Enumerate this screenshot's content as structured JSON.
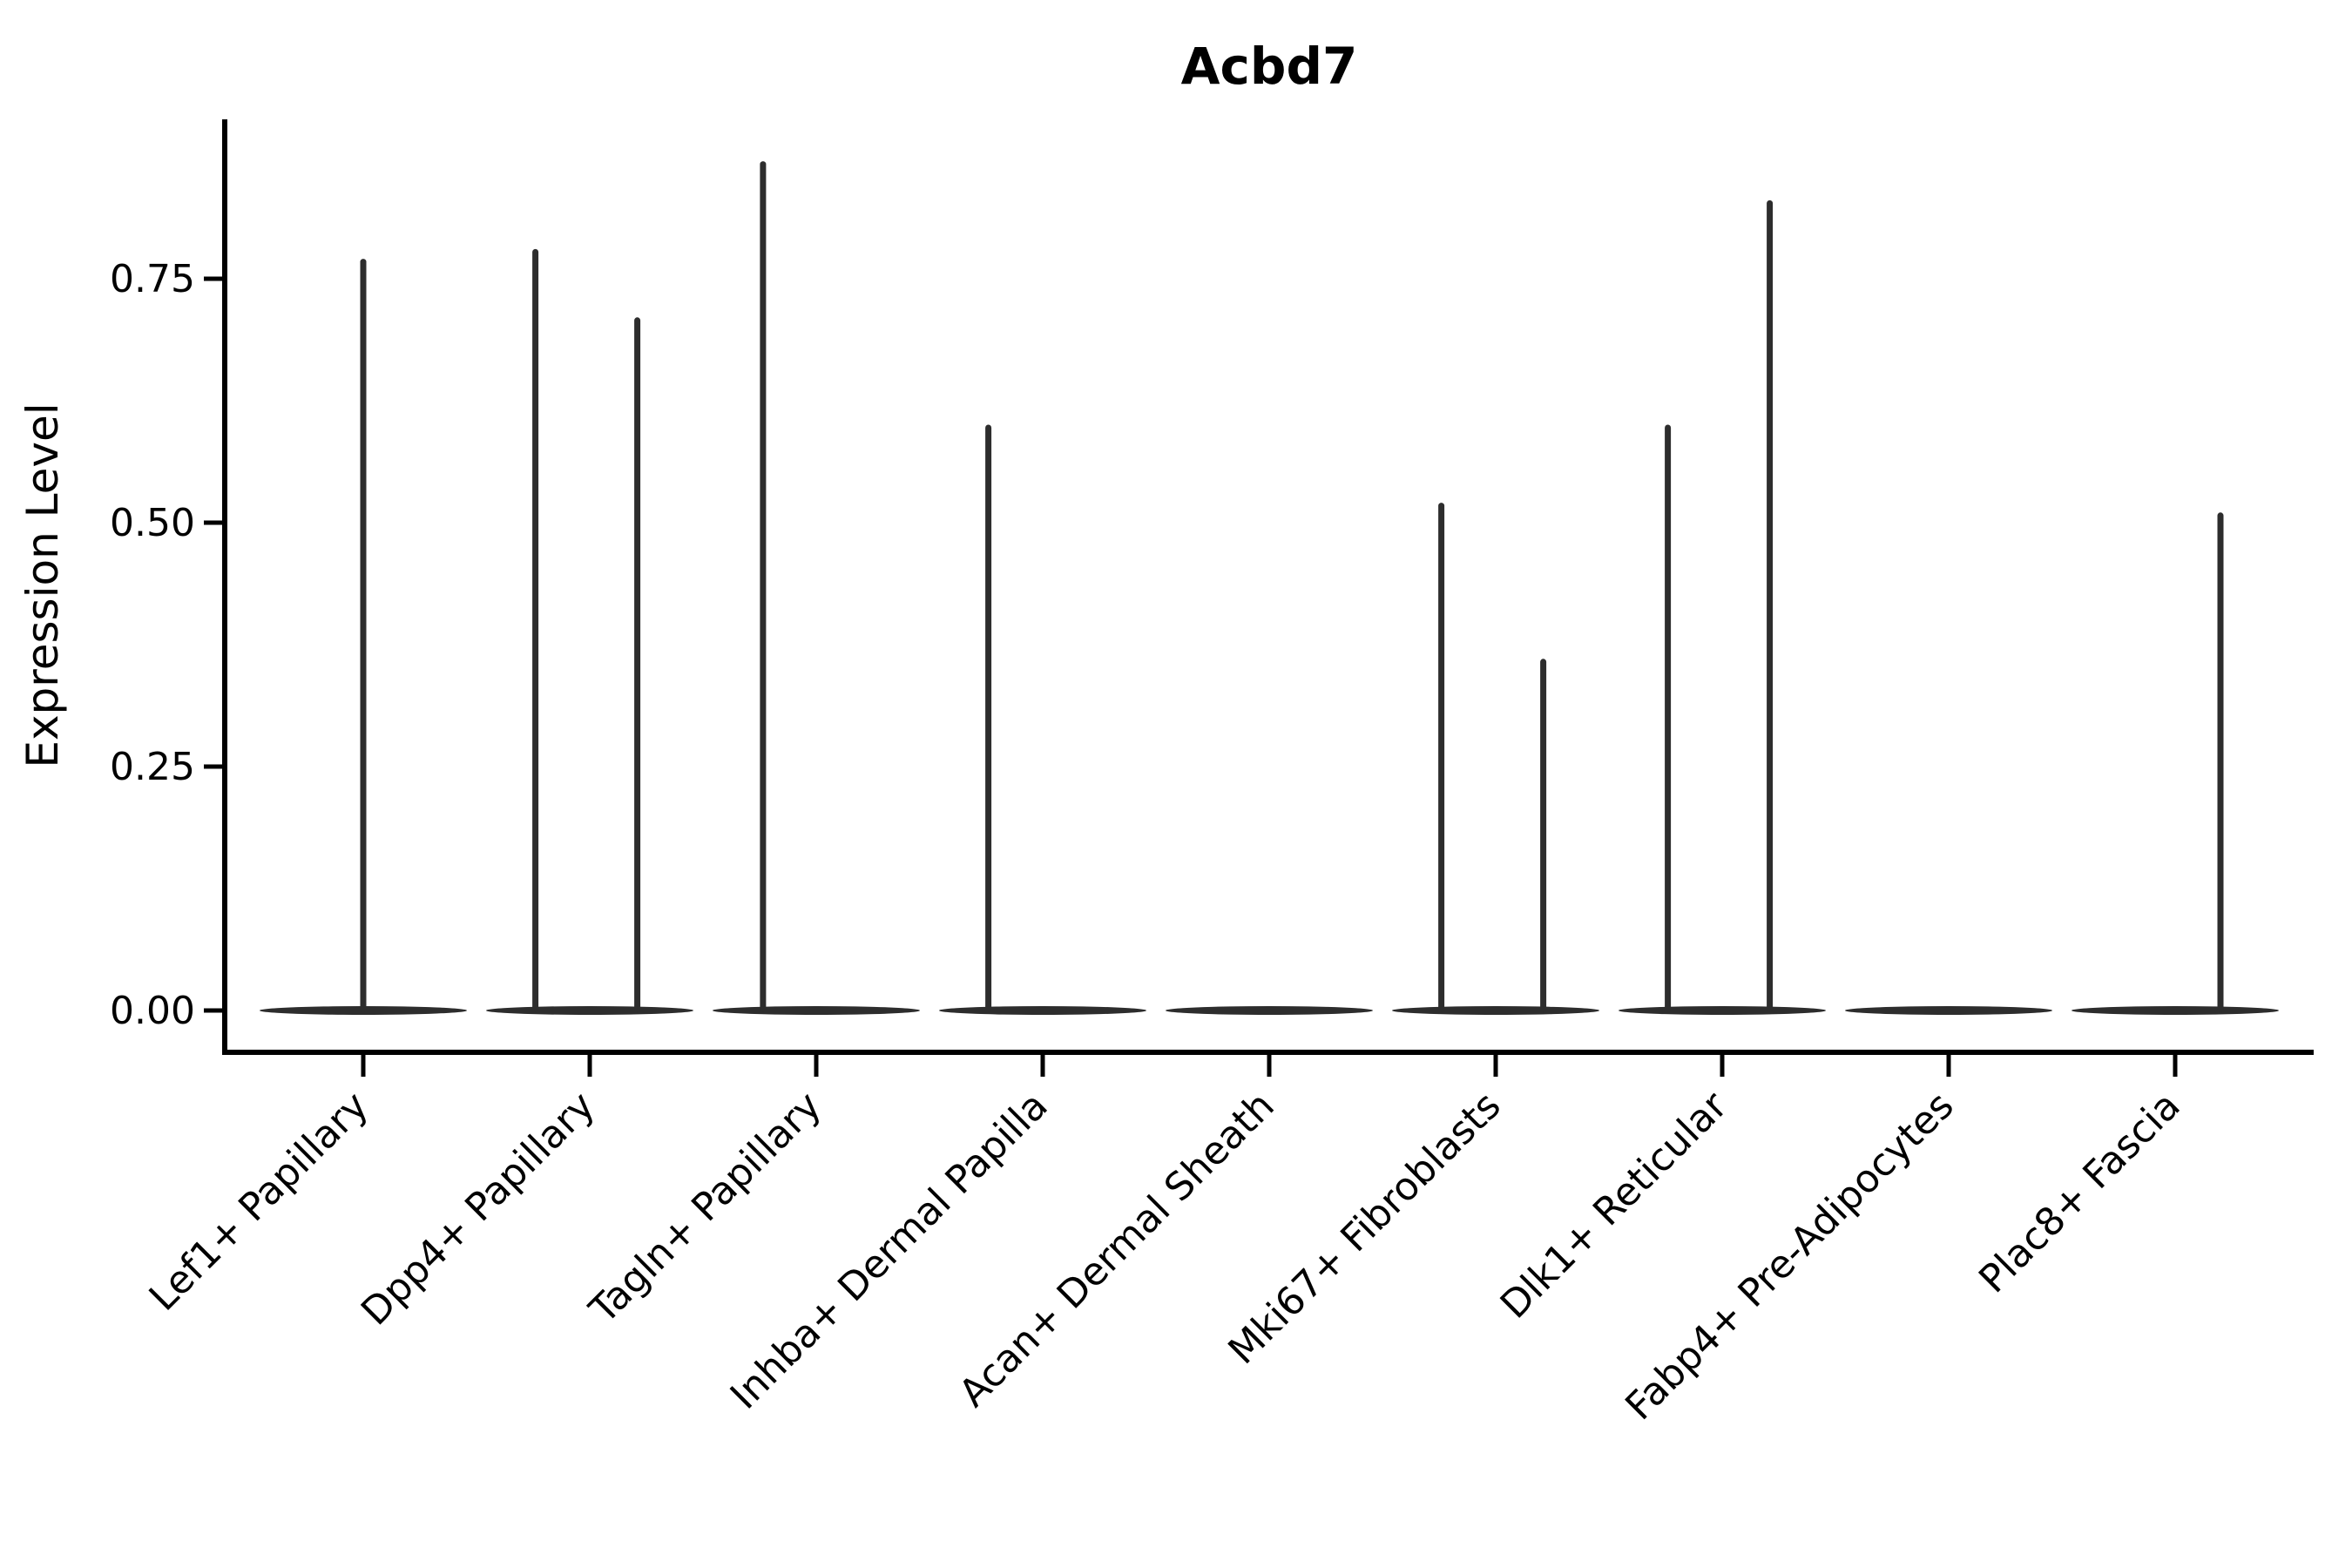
{
  "title": "Acbd7",
  "axes": {
    "ylabel": "Expression Level",
    "ytick_labels": [
      "0.00",
      "0.25",
      "0.50",
      "0.75"
    ]
  },
  "chart_data": {
    "type": "violin",
    "title": "Acbd7",
    "xlabel": "",
    "ylabel": "Expression Level",
    "yticks": [
      0.0,
      0.25,
      0.5,
      0.75
    ],
    "ylim": [
      -0.044,
      0.91
    ],
    "grid": false,
    "legend": null,
    "categories": [
      "Lef1+ Papillary",
      "Dpp4+ Papillary",
      "Tagln+ Papillary",
      "Inhba+ Dermal Papilla",
      "Acan+ Dermal Sheath",
      "Mki67+ Fibroblasts",
      "Dlk1+ Reticular",
      "Fabp4+ Pre-Adipocytes",
      "Plac8+ Fascia"
    ],
    "description": "Single-gene violin plot (Acbd7). Every cluster has a flat density base at expression 0; thin vertical density spikes reach the max-expressing cells of that cluster. Acan+ Dermal Sheath and Fabp4+ Pre-Adipocytes have no cells above 0.",
    "violins": [
      {
        "category": "Lef1+ Papillary",
        "zero_base": true,
        "spikes": [
          {
            "offset_frac": 0.0,
            "max": 0.77
          }
        ]
      },
      {
        "category": "Dpp4+ Papillary",
        "zero_base": true,
        "spikes": [
          {
            "offset_frac": -0.24,
            "max": 0.78
          },
          {
            "offset_frac": 0.21,
            "max": 0.71
          }
        ]
      },
      {
        "category": "Tagln+ Papillary",
        "zero_base": true,
        "spikes": [
          {
            "offset_frac": -0.235,
            "max": 0.87
          }
        ]
      },
      {
        "category": "Inhba+ Dermal Papilla",
        "zero_base": true,
        "spikes": [
          {
            "offset_frac": -0.24,
            "max": 0.6
          }
        ]
      },
      {
        "category": "Acan+ Dermal Sheath",
        "zero_base": true,
        "spikes": []
      },
      {
        "category": "Mki67+ Fibroblasts",
        "zero_base": true,
        "spikes": [
          {
            "offset_frac": -0.24,
            "max": 0.52
          },
          {
            "offset_frac": 0.21,
            "max": 0.36
          }
        ]
      },
      {
        "category": "Dlk1+ Reticular",
        "zero_base": true,
        "spikes": [
          {
            "offset_frac": -0.24,
            "max": 0.6
          },
          {
            "offset_frac": 0.21,
            "max": 0.83
          }
        ]
      },
      {
        "category": "Fabp4+ Pre-Adipocytes",
        "zero_base": true,
        "spikes": []
      },
      {
        "category": "Plac8+ Fascia",
        "zero_base": true,
        "spikes": [
          {
            "offset_frac": 0.2,
            "max": 0.51
          }
        ]
      }
    ],
    "colors": {
      "line": "#2d2d2d",
      "axis": "#000000",
      "background": "#ffffff"
    }
  }
}
